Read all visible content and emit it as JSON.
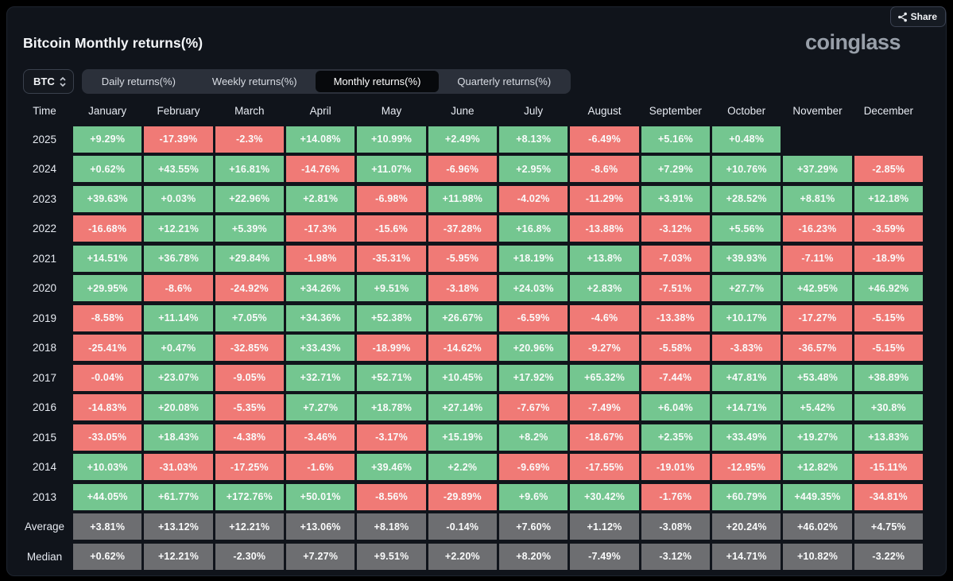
{
  "header": {
    "title": "Bitcoin Monthly returns(%)",
    "logo": "coinglass",
    "share_label": "Share"
  },
  "controls": {
    "symbol": "BTC",
    "tabs": [
      {
        "label": "Daily returns(%)",
        "active": false
      },
      {
        "label": "Weekly returns(%)",
        "active": false
      },
      {
        "label": "Monthly returns(%)",
        "active": true
      },
      {
        "label": "Quarterly returns(%)",
        "active": false
      }
    ]
  },
  "colors": {
    "positive": "#74c690",
    "negative": "#f07a76",
    "neutral": "#6d6e71",
    "panel_background": "#10141b",
    "page_background": "#000000",
    "tabbar_background": "#2b303a",
    "active_tab_background": "#07090c"
  },
  "table": {
    "columns": [
      "Time",
      "January",
      "February",
      "March",
      "April",
      "May",
      "June",
      "July",
      "August",
      "September",
      "October",
      "November",
      "December"
    ],
    "rows": [
      {
        "label": "2025",
        "summary": false,
        "values": [
          "+9.29%",
          "-17.39%",
          "-2.3%",
          "+14.08%",
          "+10.99%",
          "+2.49%",
          "+8.13%",
          "-6.49%",
          "+5.16%",
          "+0.48%",
          "",
          ""
        ]
      },
      {
        "label": "2024",
        "summary": false,
        "values": [
          "+0.62%",
          "+43.55%",
          "+16.81%",
          "-14.76%",
          "+11.07%",
          "-6.96%",
          "+2.95%",
          "-8.6%",
          "+7.29%",
          "+10.76%",
          "+37.29%",
          "-2.85%"
        ]
      },
      {
        "label": "2023",
        "summary": false,
        "values": [
          "+39.63%",
          "+0.03%",
          "+22.96%",
          "+2.81%",
          "-6.98%",
          "+11.98%",
          "-4.02%",
          "-11.29%",
          "+3.91%",
          "+28.52%",
          "+8.81%",
          "+12.18%"
        ]
      },
      {
        "label": "2022",
        "summary": false,
        "values": [
          "-16.68%",
          "+12.21%",
          "+5.39%",
          "-17.3%",
          "-15.6%",
          "-37.28%",
          "+16.8%",
          "-13.88%",
          "-3.12%",
          "+5.56%",
          "-16.23%",
          "-3.59%"
        ]
      },
      {
        "label": "2021",
        "summary": false,
        "values": [
          "+14.51%",
          "+36.78%",
          "+29.84%",
          "-1.98%",
          "-35.31%",
          "-5.95%",
          "+18.19%",
          "+13.8%",
          "-7.03%",
          "+39.93%",
          "-7.11%",
          "-18.9%"
        ]
      },
      {
        "label": "2020",
        "summary": false,
        "values": [
          "+29.95%",
          "-8.6%",
          "-24.92%",
          "+34.26%",
          "+9.51%",
          "-3.18%",
          "+24.03%",
          "+2.83%",
          "-7.51%",
          "+27.7%",
          "+42.95%",
          "+46.92%"
        ]
      },
      {
        "label": "2019",
        "summary": false,
        "values": [
          "-8.58%",
          "+11.14%",
          "+7.05%",
          "+34.36%",
          "+52.38%",
          "+26.67%",
          "-6.59%",
          "-4.6%",
          "-13.38%",
          "+10.17%",
          "-17.27%",
          "-5.15%"
        ]
      },
      {
        "label": "2018",
        "summary": false,
        "values": [
          "-25.41%",
          "+0.47%",
          "-32.85%",
          "+33.43%",
          "-18.99%",
          "-14.62%",
          "+20.96%",
          "-9.27%",
          "-5.58%",
          "-3.83%",
          "-36.57%",
          "-5.15%"
        ]
      },
      {
        "label": "2017",
        "summary": false,
        "values": [
          "-0.04%",
          "+23.07%",
          "-9.05%",
          "+32.71%",
          "+52.71%",
          "+10.45%",
          "+17.92%",
          "+65.32%",
          "-7.44%",
          "+47.81%",
          "+53.48%",
          "+38.89%"
        ]
      },
      {
        "label": "2016",
        "summary": false,
        "values": [
          "-14.83%",
          "+20.08%",
          "-5.35%",
          "+7.27%",
          "+18.78%",
          "+27.14%",
          "-7.67%",
          "-7.49%",
          "+6.04%",
          "+14.71%",
          "+5.42%",
          "+30.8%"
        ]
      },
      {
        "label": "2015",
        "summary": false,
        "values": [
          "-33.05%",
          "+18.43%",
          "-4.38%",
          "-3.46%",
          "-3.17%",
          "+15.19%",
          "+8.2%",
          "-18.67%",
          "+2.35%",
          "+33.49%",
          "+19.27%",
          "+13.83%"
        ]
      },
      {
        "label": "2014",
        "summary": false,
        "values": [
          "+10.03%",
          "-31.03%",
          "-17.25%",
          "-1.6%",
          "+39.46%",
          "+2.2%",
          "-9.69%",
          "-17.55%",
          "-19.01%",
          "-12.95%",
          "+12.82%",
          "-15.11%"
        ]
      },
      {
        "label": "2013",
        "summary": false,
        "values": [
          "+44.05%",
          "+61.77%",
          "+172.76%",
          "+50.01%",
          "-8.56%",
          "-29.89%",
          "+9.6%",
          "+30.42%",
          "-1.76%",
          "+60.79%",
          "+449.35%",
          "-34.81%"
        ]
      },
      {
        "label": "Average",
        "summary": true,
        "values": [
          "+3.81%",
          "+13.12%",
          "+12.21%",
          "+13.06%",
          "+8.18%",
          "-0.14%",
          "+7.60%",
          "+1.12%",
          "-3.08%",
          "+20.24%",
          "+46.02%",
          "+4.75%"
        ]
      },
      {
        "label": "Median",
        "summary": true,
        "values": [
          "+0.62%",
          "+12.21%",
          "-2.30%",
          "+7.27%",
          "+9.51%",
          "+2.20%",
          "+8.20%",
          "-7.49%",
          "-3.12%",
          "+14.71%",
          "+10.82%",
          "-3.22%"
        ]
      }
    ]
  }
}
